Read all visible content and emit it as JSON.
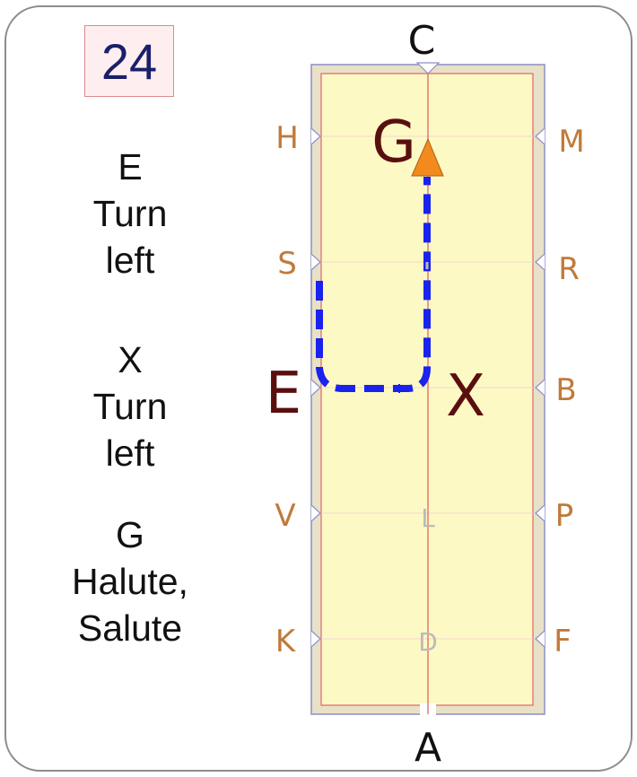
{
  "test_number": "24",
  "instructions": [
    {
      "point": "E",
      "text_lines": [
        "Turn",
        "left"
      ]
    },
    {
      "point": "X",
      "text_lines": [
        "Turn",
        "left"
      ]
    },
    {
      "point": "G",
      "text_lines": [
        "Halute,",
        "Salute"
      ]
    }
  ],
  "arena": {
    "letters_left": [
      "H",
      "S",
      "E",
      "V",
      "K"
    ],
    "letters_right": [
      "M",
      "R",
      "B",
      "P",
      "F"
    ],
    "top_letter": "C",
    "bottom_letter": "A",
    "centerline_letters": [
      "G",
      "X",
      "L",
      "D"
    ],
    "highlighted": [
      "G",
      "E",
      "X"
    ]
  },
  "colors": {
    "arena_fill": "#fdf9c4",
    "arena_border": "#e8e1c8",
    "centerline": "#e06666",
    "path": "#1a22ee",
    "arrow": "#f28a1e",
    "letter": "#c07a3a",
    "highlight_letter": "#5a0f0f"
  }
}
